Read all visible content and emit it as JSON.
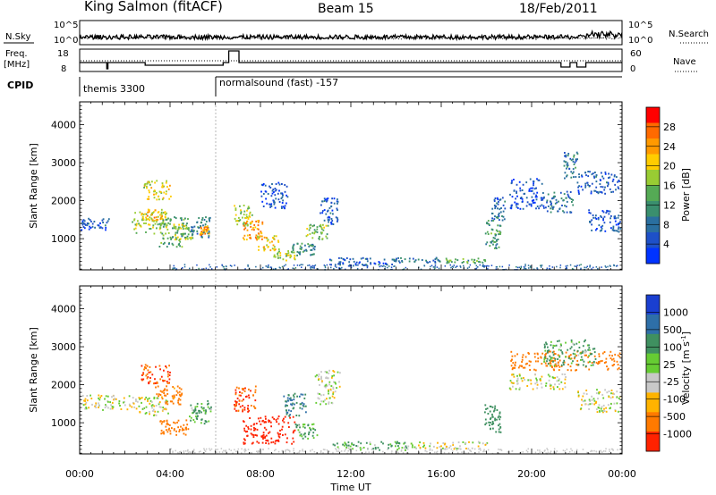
{
  "header": {
    "station": "King Salmon (fitACF)",
    "beam": "Beam 15",
    "date": "18/Feb/2011"
  },
  "noise_panel": {
    "left_label": "N.Sky",
    "right_label": "N.Search",
    "ticks": [
      "10^5",
      "10^0"
    ]
  },
  "freq_panel": {
    "label_line1": "Freq.",
    "label_line2": "[MHz]",
    "left_ticks": [
      "18",
      "8"
    ],
    "right_label": "Nave",
    "right_ticks": [
      "60",
      "0"
    ]
  },
  "cpid_panel": {
    "label": "CPID",
    "modes": [
      {
        "name": "themis 3300",
        "start_hour": 0
      },
      {
        "name": "normalsound (fast) -157",
        "start_hour": 6.0
      }
    ]
  },
  "colorbars": {
    "power": {
      "label": "Power [dB]",
      "ticks": [
        "28",
        "24",
        "20",
        "16",
        "12",
        "8",
        "4"
      ],
      "colors": [
        "#ff0000",
        "#ff6a00",
        "#ff9900",
        "#ffcc00",
        "#99cc33",
        "#55aa55",
        "#3a8f6e",
        "#2a6fa0",
        "#1e50c8",
        "#0033ff"
      ]
    },
    "velocity": {
      "label": "Velocity [m s",
      "label_sup": "-1",
      "label_close": "]",
      "ticks": [
        "1000",
        "500",
        "100",
        "25",
        "-25",
        "-100",
        "-500",
        "-1000"
      ],
      "colors": [
        "#1a3fd0",
        "#2e6fa8",
        "#3f9060",
        "#66cc33",
        "#c8c8c8",
        "#ffb300",
        "#ff7a00",
        "#ff2200"
      ]
    }
  },
  "chart_data": [
    {
      "type": "heatmap",
      "name": "power",
      "xlabel": "",
      "ylabel": "Slant Range [km]",
      "xlim": [
        0,
        24
      ],
      "ylim": [
        180,
        4600
      ],
      "yticks": [
        "1000",
        "2000",
        "3000",
        "4000"
      ],
      "regions": [
        {
          "t": [
            0.05,
            1.3
          ],
          "r": [
            1250,
            1550
          ],
          "v": 7
        },
        {
          "t": [
            2.3,
            3.9
          ],
          "r": [
            1150,
            1750
          ],
          "v": 18
        },
        {
          "t": [
            2.7,
            3.8
          ],
          "r": [
            1500,
            1800
          ],
          "v": 22
        },
        {
          "t": [
            2.8,
            4.0
          ],
          "r": [
            2050,
            2550
          ],
          "v": 20
        },
        {
          "t": [
            3.5,
            4.8
          ],
          "r": [
            800,
            1600
          ],
          "v": 14
        },
        {
          "t": [
            4.1,
            5.0
          ],
          "r": [
            1000,
            1400
          ],
          "v": 18
        },
        {
          "t": [
            4.9,
            5.8
          ],
          "r": [
            1050,
            1600
          ],
          "v": 10
        },
        {
          "t": [
            5.3,
            5.7
          ],
          "r": [
            1100,
            1350
          ],
          "v": 24
        },
        {
          "t": [
            6.8,
            7.6
          ],
          "r": [
            1350,
            1900
          ],
          "v": 18
        },
        {
          "t": [
            7.2,
            8.1
          ],
          "r": [
            1000,
            1500
          ],
          "v": 24
        },
        {
          "t": [
            7.8,
            8.8
          ],
          "r": [
            700,
            1100
          ],
          "v": 21
        },
        {
          "t": [
            8.5,
            9.5
          ],
          "r": [
            450,
            700
          ],
          "v": 17
        },
        {
          "t": [
            9.3,
            10.4
          ],
          "r": [
            550,
            900
          ],
          "v": 12
        },
        {
          "t": [
            10.0,
            11.0
          ],
          "r": [
            1000,
            1400
          ],
          "v": 16
        },
        {
          "t": [
            10.6,
            11.4
          ],
          "r": [
            1400,
            2100
          ],
          "v": 7
        },
        {
          "t": [
            8.0,
            9.2
          ],
          "r": [
            1800,
            2500
          ],
          "v": 6
        },
        {
          "t": [
            11.0,
            13.8
          ],
          "r": [
            300,
            520
          ],
          "v": 7
        },
        {
          "t": [
            13.8,
            16.0
          ],
          "r": [
            380,
            520
          ],
          "v": 9
        },
        {
          "t": [
            16.0,
            18.0
          ],
          "r": [
            380,
            500
          ],
          "v": 14
        },
        {
          "t": [
            17.9,
            18.6
          ],
          "r": [
            750,
            1500
          ],
          "v": 13
        },
        {
          "t": [
            18.2,
            18.8
          ],
          "r": [
            1500,
            2100
          ],
          "v": 8
        },
        {
          "t": [
            19.0,
            20.5
          ],
          "r": [
            1800,
            2600
          ],
          "v": 6
        },
        {
          "t": [
            20.5,
            21.8
          ],
          "r": [
            1700,
            2300
          ],
          "v": 9
        },
        {
          "t": [
            21.4,
            22.0
          ],
          "r": [
            2600,
            3300
          ],
          "v": 10
        },
        {
          "t": [
            22.0,
            23.9
          ],
          "r": [
            2200,
            2800
          ],
          "v": 7
        },
        {
          "t": [
            22.5,
            23.9
          ],
          "r": [
            1200,
            1800
          ],
          "v": 6
        }
      ]
    },
    {
      "type": "heatmap",
      "name": "velocity",
      "xlabel": "Time UT",
      "ylabel": "Slant Range [km]",
      "xlim": [
        0,
        24
      ],
      "ylim": [
        180,
        4600
      ],
      "xticks": [
        "00:00",
        "04:00",
        "08:00",
        "12:00",
        "16:00",
        "20:00",
        "00:00"
      ],
      "yticks": [
        "1000",
        "2000",
        "3000",
        "4000"
      ],
      "regions": [
        {
          "t": [
            0.05,
            2.5
          ],
          "r": [
            1350,
            1750
          ],
          "v": 0
        },
        {
          "t": [
            2.5,
            3.9
          ],
          "r": [
            1200,
            1700
          ],
          "v": 0
        },
        {
          "t": [
            2.7,
            4.0
          ],
          "r": [
            2050,
            2550
          ],
          "v": -300
        },
        {
          "t": [
            3.3,
            4.5
          ],
          "r": [
            1500,
            2000
          ],
          "v": -120
        },
        {
          "t": [
            3.5,
            4.8
          ],
          "r": [
            700,
            1100
          ],
          "v": -200
        },
        {
          "t": [
            4.8,
            5.8
          ],
          "r": [
            1000,
            1600
          ],
          "v": 80
        },
        {
          "t": [
            6.8,
            7.8
          ],
          "r": [
            1300,
            2000
          ],
          "v": -300
        },
        {
          "t": [
            7.2,
            9.5
          ],
          "r": [
            450,
            1200
          ],
          "v": -400
        },
        {
          "t": [
            9.0,
            10.0
          ],
          "r": [
            1200,
            1800
          ],
          "v": 300
        },
        {
          "t": [
            9.5,
            10.5
          ],
          "r": [
            600,
            1000
          ],
          "v": 70
        },
        {
          "t": [
            10.4,
            11.5
          ],
          "r": [
            1500,
            2400
          ],
          "v": 0
        },
        {
          "t": [
            11.0,
            14.5
          ],
          "r": [
            300,
            520
          ],
          "v": 70
        },
        {
          "t": [
            14.5,
            18.0
          ],
          "r": [
            330,
            520
          ],
          "v": 0
        },
        {
          "t": [
            17.9,
            18.6
          ],
          "r": [
            750,
            1500
          ],
          "v": 200
        },
        {
          "t": [
            19.0,
            21.5
          ],
          "r": [
            1900,
            2300
          ],
          "v": 0
        },
        {
          "t": [
            19.0,
            23.9
          ],
          "r": [
            2400,
            2900
          ],
          "v": -150
        },
        {
          "t": [
            20.5,
            22.8
          ],
          "r": [
            2500,
            3200
          ],
          "v": 80
        },
        {
          "t": [
            22.0,
            23.9
          ],
          "r": [
            1300,
            1900
          ],
          "v": 0
        }
      ]
    }
  ]
}
